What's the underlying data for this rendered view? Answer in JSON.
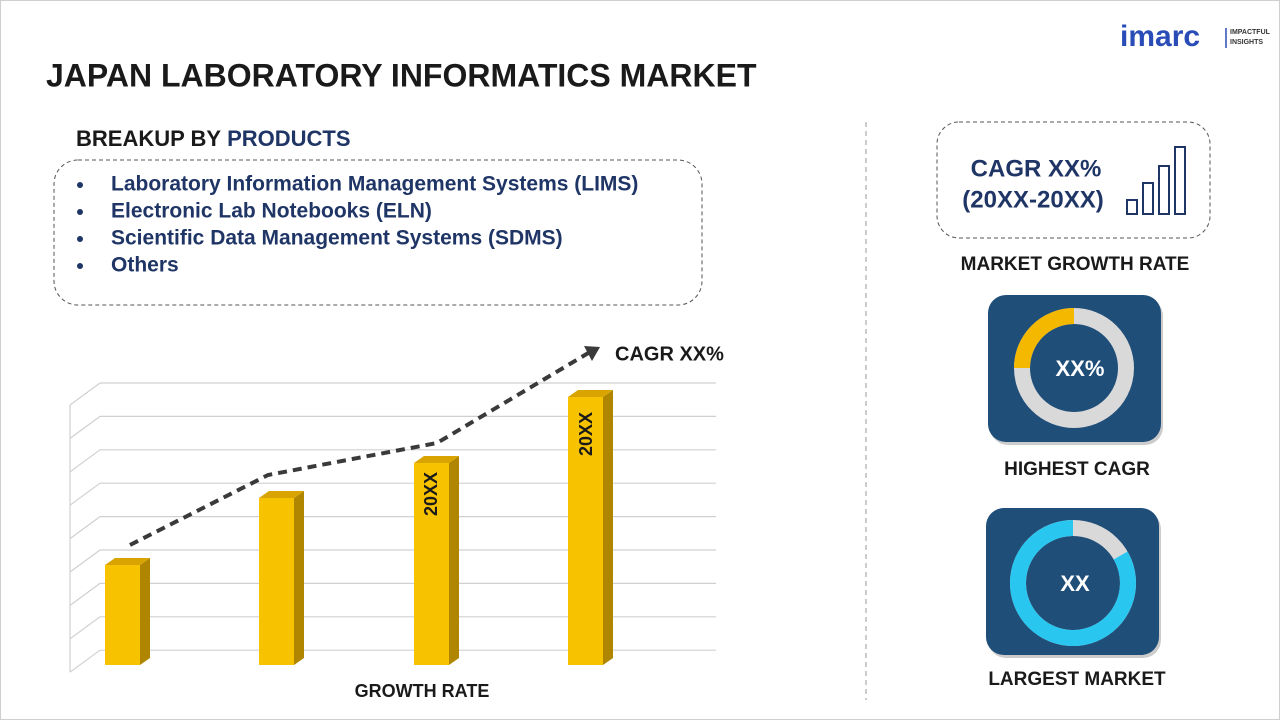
{
  "brand": {
    "name": "imarc",
    "tagline": [
      "IMPACTFUL",
      "INSIGHTS"
    ]
  },
  "title": "JAPAN LABORATORY INFORMATICS MARKET",
  "breakup": {
    "label": "BREAKUP BY",
    "highlight": "PRODUCTS",
    "items": [
      "Laboratory Information Management Systems (LIMS)",
      "Electronic Lab Notebooks (ELN)",
      "Scientific Data Management Systems (SDMS)",
      "Others"
    ]
  },
  "growth_chart": {
    "cagr": "CAGR XX%",
    "bar_labels": [
      "20XX",
      "20XX"
    ],
    "caption": "GROWTH RATE"
  },
  "market_growth": {
    "cagr": "CAGR XX%",
    "period": "(20XX-20XX)",
    "caption": "MARKET GROWTH RATE"
  },
  "highest_cagr": {
    "value": "XX%",
    "caption": "HIGHEST CAGR"
  },
  "largest_market": {
    "value": "XX",
    "caption": "LARGEST MARKET"
  }
}
